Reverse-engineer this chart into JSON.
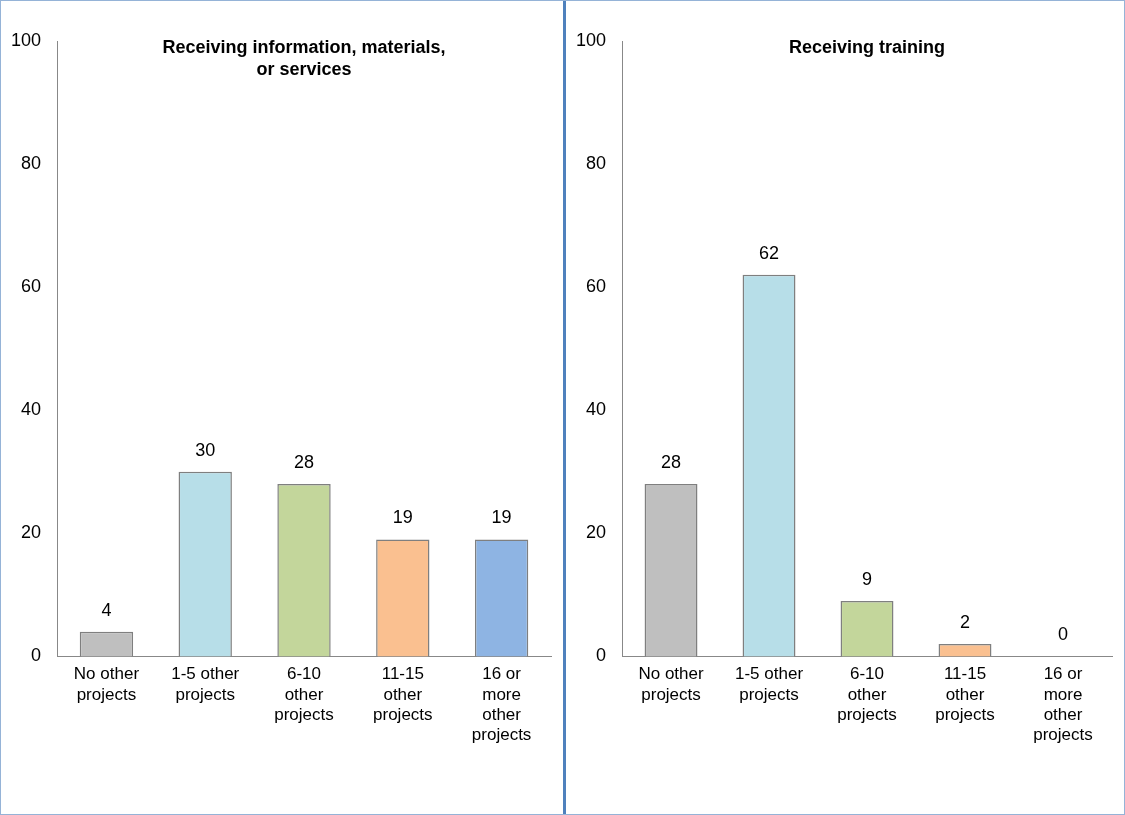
{
  "chart_data": [
    {
      "type": "bar",
      "title": "Receiving information, materials, or services",
      "categories": [
        "No other\nprojects",
        "1-5 other\nprojects",
        "6-10\nother\nprojects",
        "11-15\nother\nprojects",
        "16 or\nmore\nother\nprojects"
      ],
      "values": [
        4,
        30,
        28,
        19,
        19
      ],
      "colors": [
        "#bfbfbf",
        "#b7dee8",
        "#c3d69b",
        "#fac090",
        "#8eb4e3"
      ],
      "ylim": [
        0,
        100
      ],
      "yticks": [
        0,
        20,
        40,
        60,
        80,
        100
      ],
      "data_labels": true,
      "grid": false,
      "legend": false
    },
    {
      "type": "bar",
      "title": "Receiving training",
      "categories": [
        "No other\nprojects",
        "1-5 other\nprojects",
        "6-10\nother\nprojects",
        "11-15\nother\nprojects",
        "16 or\nmore\nother\nprojects"
      ],
      "values": [
        28,
        62,
        9,
        2,
        0
      ],
      "colors": [
        "#bfbfbf",
        "#b7dee8",
        "#c3d69b",
        "#fac090",
        "#8eb4e3"
      ],
      "ylim": [
        0,
        100
      ],
      "yticks": [
        0,
        20,
        40,
        60,
        80,
        100
      ],
      "data_labels": true,
      "grid": false,
      "legend": false
    }
  ]
}
